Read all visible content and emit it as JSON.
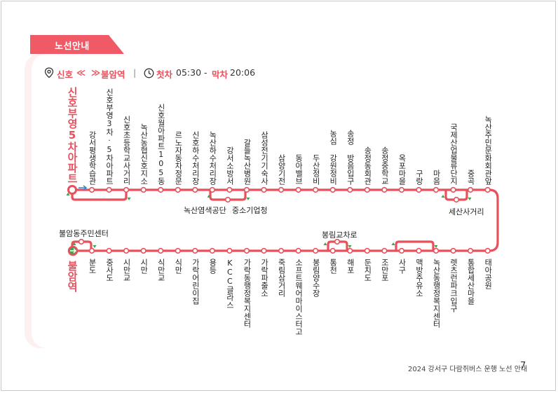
{
  "header": {
    "tab_label": "노선안내"
  },
  "route_info": {
    "departure": "신호",
    "arrows_left": "≪",
    "arrows_right": "≫",
    "destination": "불암역",
    "separator": "|",
    "first_label": "첫차",
    "first_time": "05:30",
    "dash": "-",
    "last_label": "막차",
    "last_time": "20:06"
  },
  "top_terminal": "신호부영5차아파트",
  "bottom_terminal": "불암역",
  "top_stops": [
    "강서평생학습관",
    "신호부영3차·5차아파트",
    "신호초등학교사거리",
    "녹산농협신호지소",
    "신호월아파트105동",
    "르노자동차정문",
    "신호하수처리장",
    "녹산하수처리장",
    "강서소방서",
    "갈들녹산병원",
    "삼성전기기숙사",
    "삼양기전",
    "동아밸브",
    "두산정비",
    "농심 강원정비",
    "송정 방음입구",
    "송정동회관",
    "송정중학교",
    "옥포마을",
    "구랑",
    "마음",
    "국제산업물류단지",
    "중곡",
    "녹산주민문화회관앞"
  ],
  "top_branch_stops": [
    "녹산염색공단",
    "중소기업청",
    "세산사거리"
  ],
  "bottom_stops": [
    "분도",
    "중사도",
    "시만교",
    "시만",
    "식만교",
    "식만",
    "가락어린이집",
    "용등",
    "KCC글라스",
    "가락동행정복지센터",
    "가락파출소",
    "죽림삼거리",
    "소프트웨어마이스터고",
    "봉림양수장",
    "통천",
    "해포",
    "둔치도",
    "조만포",
    "사구",
    "맥방주유소",
    "녹산동행정복지센터",
    "렛츠런파크입구",
    "통합세산마을",
    "태아공원"
  ],
  "bottom_branch_stops": [
    "불암동주민센터",
    "봉림교차로"
  ],
  "footer": {
    "text": "2024 강서구 다람쥐버스 운행 노선 안내",
    "page": "7"
  },
  "colors": {
    "accent": "#ef5a66",
    "route": "#e8505b",
    "direction": "#3fa34d",
    "panel": "#fdf0f1"
  },
  "icons": [
    "location-pin-icon",
    "clock-icon",
    "bus-stop-circle-icon",
    "direction-arrow-icon"
  ]
}
